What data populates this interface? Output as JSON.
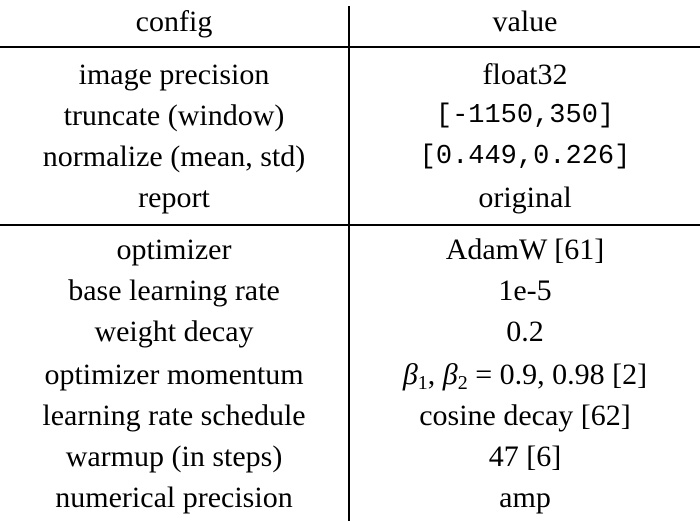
{
  "header": {
    "config": "config",
    "value": "value"
  },
  "section1": [
    {
      "config": "image precision",
      "value": "float32",
      "mono": false
    },
    {
      "config": "truncate (window)",
      "value": "[-1150,350]",
      "mono": true
    },
    {
      "config": "normalize (mean, std)",
      "value": "[0.449,0.226]",
      "mono": true
    },
    {
      "config": "report",
      "value": "original",
      "mono": false
    }
  ],
  "section2": [
    {
      "config": "optimizer",
      "value": "AdamW [61]"
    },
    {
      "config": "base learning rate",
      "value": "1e-5"
    },
    {
      "config": "weight decay",
      "value": "0.2"
    },
    {
      "config": "optimizer momentum",
      "value_parts": {
        "beta": "β",
        "sub1": "1",
        "sep": ", ",
        "sub2": "2",
        "rest": " = 0.9, 0.98 [2]"
      }
    },
    {
      "config": "learning rate schedule",
      "value": "cosine decay [62]"
    },
    {
      "config": "warmup (in steps)",
      "value": "47 [6]"
    },
    {
      "config": "numerical precision",
      "value": "amp"
    }
  ]
}
